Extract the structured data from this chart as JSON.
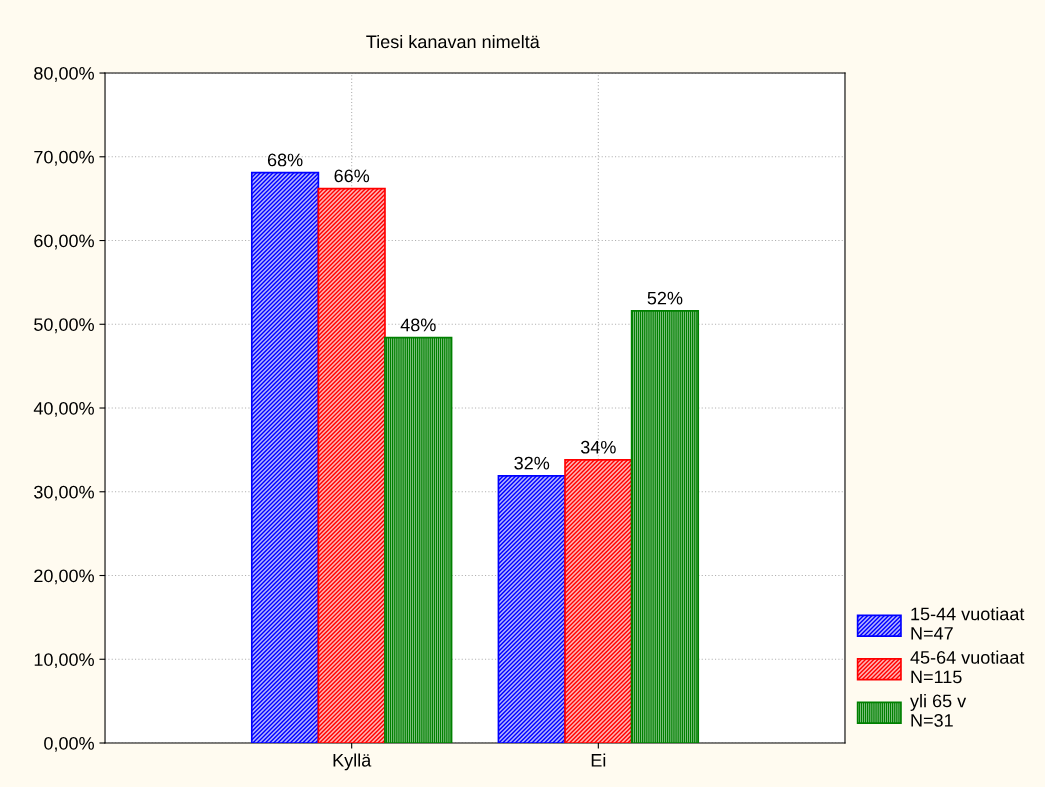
{
  "chart_data": {
    "type": "bar",
    "title": "Tiesi kanavan nimeltä",
    "categories": [
      "Kyllä",
      "Ei"
    ],
    "series": [
      {
        "name": "15-44 vuotiaat\nN=47",
        "color": "#0000ff",
        "values": [
          68.1,
          31.9
        ],
        "value_labels": [
          "68%",
          "32%"
        ]
      },
      {
        "name": "45-64 vuotiaat\nN=115",
        "color": "#ff0000",
        "values": [
          66.2,
          33.8
        ],
        "value_labels": [
          "66%",
          "34%"
        ]
      },
      {
        "name": "yli 65 v\nN=31",
        "color": "#008000",
        "values": [
          48.4,
          51.6
        ],
        "value_labels": [
          "48%",
          "52%"
        ]
      }
    ],
    "ylim": [
      0,
      80
    ],
    "yticks": [
      {
        "value": 0,
        "label": "0,00%"
      },
      {
        "value": 10,
        "label": "10,00%"
      },
      {
        "value": 20,
        "label": "20,00%"
      },
      {
        "value": 30,
        "label": "30,00%"
      },
      {
        "value": 40,
        "label": "40,00%"
      },
      {
        "value": 50,
        "label": "50,00%"
      },
      {
        "value": 60,
        "label": "60,00%"
      },
      {
        "value": 70,
        "label": "70,00%"
      },
      {
        "value": 80,
        "label": "80,00%"
      }
    ],
    "grid": true,
    "legend": "bottom right"
  }
}
